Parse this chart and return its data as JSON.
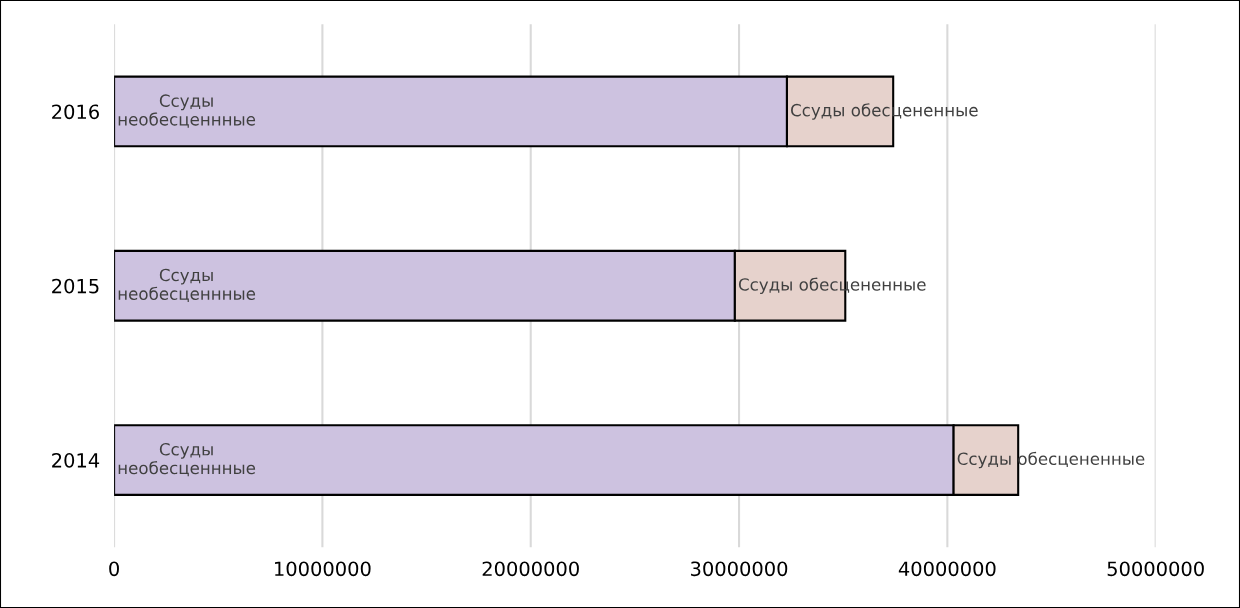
{
  "chart_data": {
    "type": "bar",
    "orientation": "horizontal",
    "stacked": true,
    "categories": [
      "2016",
      "2015",
      "2014"
    ],
    "series": [
      {
        "name": "Ссуды необесценнные",
        "color": "#cdc2e0",
        "values": [
          32300000,
          29800000,
          40300000
        ]
      },
      {
        "name": "Ссуды обесцененные",
        "color": "#e6d2cc",
        "values": [
          5100000,
          5300000,
          3100000
        ]
      }
    ],
    "xlim": [
      0,
      50000000
    ],
    "xticks": [
      0,
      10000000,
      20000000,
      30000000,
      40000000,
      50000000
    ],
    "grid": "x"
  }
}
